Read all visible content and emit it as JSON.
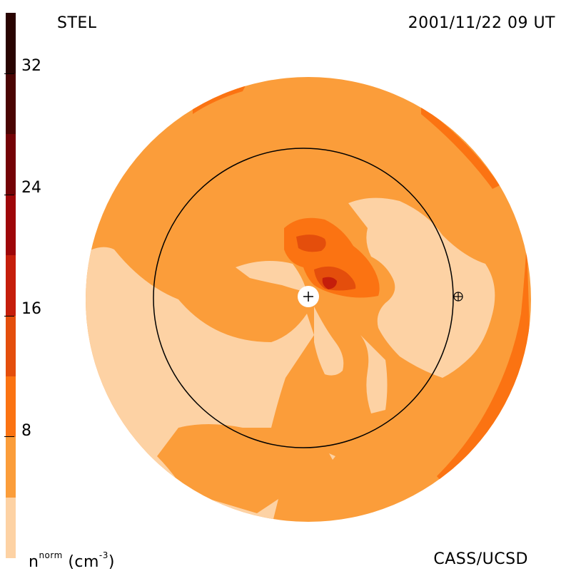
{
  "header": {
    "left_label": "STEL",
    "date_label": "2001/11/22 09 UT"
  },
  "footer": {
    "unit_label_main": "n",
    "unit_label_sup": "norm",
    "unit_label_paren": "(cm",
    "unit_label_exp": "-3",
    "unit_label_close": ")",
    "credit": "CASS/UCSD"
  },
  "colorbar": {
    "ticks": [
      "8",
      "16",
      "24",
      "32"
    ],
    "bands": [
      "#fdd2a4",
      "#fb9d3a",
      "#fb7312",
      "#e44e0c",
      "#c51e0b",
      "#9e0609",
      "#740306",
      "#4a0503",
      "#290401"
    ]
  },
  "map": {
    "colors": {
      "light": "#fdd2a4",
      "base": "#fb9d3a",
      "mid": "#fb7312",
      "high": "#e44e0c",
      "peak": "#c51e0b"
    },
    "markers": [
      "sun-marker",
      "earth-marker"
    ]
  }
}
